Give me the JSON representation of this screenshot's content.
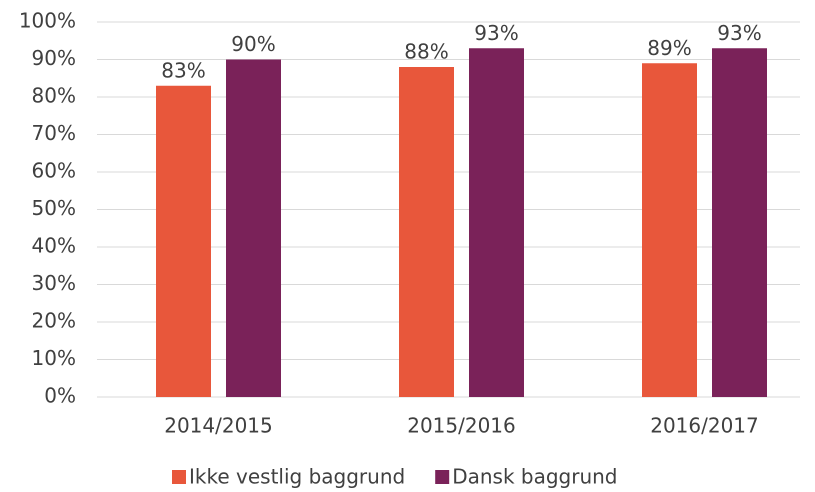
{
  "chart_data": {
    "type": "bar",
    "categories": [
      "2014/2015",
      "2015/2016",
      "2016/2017"
    ],
    "series": [
      {
        "name": "Ikke vestlig baggrund",
        "color": "#e8573b",
        "values": [
          83,
          88,
          89
        ],
        "value_labels": [
          "83%",
          "88%",
          "89%"
        ]
      },
      {
        "name": "Dansk baggrund",
        "color": "#7a2259",
        "values": [
          90,
          93,
          93
        ],
        "value_labels": [
          "90%",
          "93%",
          "93%"
        ]
      }
    ],
    "ylim": [
      0,
      100
    ],
    "yticks": [
      {
        "value": 0,
        "label": "0%"
      },
      {
        "value": 10,
        "label": "10%"
      },
      {
        "value": 20,
        "label": "20%"
      },
      {
        "value": 30,
        "label": "30%"
      },
      {
        "value": 40,
        "label": "40%"
      },
      {
        "value": 50,
        "label": "50%"
      },
      {
        "value": 60,
        "label": "60%"
      },
      {
        "value": 70,
        "label": "70%"
      },
      {
        "value": 80,
        "label": "80%"
      },
      {
        "value": 90,
        "label": "90%"
      },
      {
        "value": 100,
        "label": "100%"
      }
    ],
    "grid": true,
    "legend": "bottom"
  }
}
